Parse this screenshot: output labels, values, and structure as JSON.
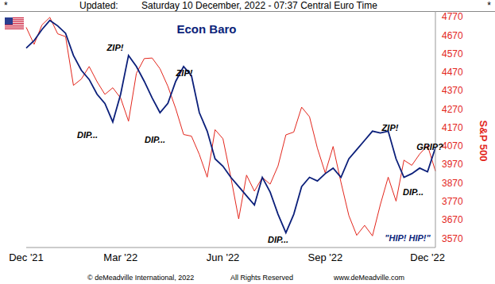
{
  "header": {
    "left": "*",
    "label": "Updated:",
    "text": "Saturday 10 December, 2022 - 07:37 Central Euro Time",
    "right": "*"
  },
  "footer": [
    "© deMeadville International, 2022",
    "All Rights Reserved",
    "www.deMeadville.com"
  ],
  "chart_data": {
    "type": "line",
    "title": "Econ Baro",
    "y_label": "S&P 500",
    "categories": [
      "Dec '21",
      null,
      null,
      null,
      null,
      null,
      null,
      null,
      null,
      null,
      null,
      null,
      "Mar '22",
      null,
      null,
      null,
      null,
      null,
      null,
      null,
      null,
      null,
      null,
      null,
      null,
      "Jun '22",
      null,
      null,
      null,
      null,
      null,
      null,
      null,
      null,
      null,
      null,
      null,
      null,
      "Sep '22",
      null,
      null,
      null,
      null,
      null,
      null,
      null,
      null,
      null,
      null,
      null,
      null,
      "Dec '22",
      null
    ],
    "series": [
      {
        "name": "Econ Baro",
        "color": "#0b1f7a",
        "values": [
          4600,
          4640,
          4700,
          4750,
          4720,
          4680,
          4560,
          4480,
          4430,
          4350,
          4300,
          4200,
          4350,
          4560,
          4500,
          4420,
          4330,
          4250,
          4300,
          4420,
          4500,
          4450,
          4250,
          4150,
          4000,
          3960,
          3900,
          3850,
          3800,
          3750,
          3900,
          3820,
          3700,
          3600,
          3700,
          3850,
          3900,
          3880,
          3920,
          3950,
          3900,
          4000,
          4050,
          4100,
          4150,
          4140,
          4150,
          4000,
          3900,
          3920,
          3950,
          3930,
          4060
        ]
      },
      {
        "name": "S&P 500",
        "color": "#e3261c",
        "values": [
          4712,
          4620,
          4725,
          4766,
          4677,
          4662,
          4398,
          4432,
          4500,
          4418,
          4349,
          4385,
          4329,
          4204,
          4463,
          4543,
          4546,
          4488,
          4393,
          4272,
          4132,
          4123,
          4024,
          3901,
          4158,
          4109,
          3901,
          3675,
          3912,
          3825,
          3899,
          3863,
          3962,
          4130,
          4145,
          4280,
          4228,
          4058,
          3924,
          4067,
          3873,
          3693,
          3586,
          3640,
          3583,
          3752,
          3901,
          3771,
          3993,
          3965,
          4026,
          4072,
          3934
        ]
      }
    ],
    "ylim": [
      3520,
      4800
    ],
    "yticks": [
      3570,
      3670,
      3770,
      3870,
      3970,
      4070,
      4170,
      4270,
      4370,
      4470,
      4570,
      4670,
      4770
    ],
    "grid": false,
    "annotations": [
      "ZIP!",
      "ZIP!",
      "ZIP!",
      "DIP...",
      "DIP...",
      "DIP...",
      "DIP...",
      "GRIP?",
      "\"HIP! HIP!\""
    ]
  }
}
